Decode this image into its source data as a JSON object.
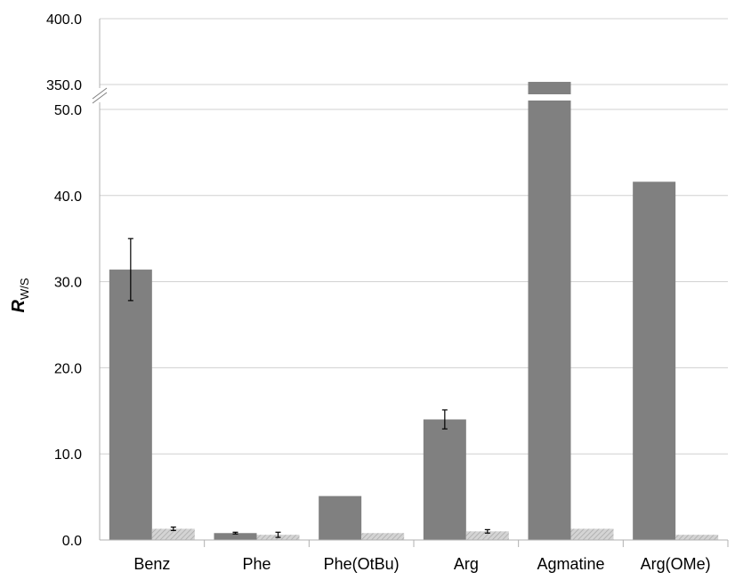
{
  "chart_data": {
    "type": "bar",
    "title": "",
    "xlabel": "",
    "ylabel": {
      "main": "R",
      "subscript": "W/S"
    },
    "categories": [
      "Benz",
      "Phe",
      "Phe(OtBu)",
      "Arg",
      "Agmatine",
      "Arg(OMe)"
    ],
    "series": [
      {
        "color": "#808080",
        "values": [
          31.4,
          0.8,
          5.1,
          14.0,
          352.0,
          41.6
        ],
        "errors": [
          3.6,
          0.1,
          null,
          1.1,
          null,
          null
        ]
      },
      {
        "color": "#c8c8c8",
        "pattern": "diagonal-hatch",
        "values": [
          1.3,
          0.6,
          0.8,
          1.0,
          1.3,
          0.6
        ],
        "errors": [
          0.2,
          0.3,
          null,
          0.2,
          null,
          null
        ]
      }
    ],
    "axis_break": {
      "lower_range": [
        0,
        50
      ],
      "upper_range": [
        350,
        400
      ]
    },
    "y_ticks": [
      "0.0",
      "10.0",
      "20.0",
      "30.0",
      "40.0",
      "50.0",
      "350.0",
      "400.0"
    ],
    "y_tick_values": [
      0,
      10,
      20,
      30,
      40,
      50,
      350,
      400
    ],
    "grid": true,
    "legend": "none"
  }
}
